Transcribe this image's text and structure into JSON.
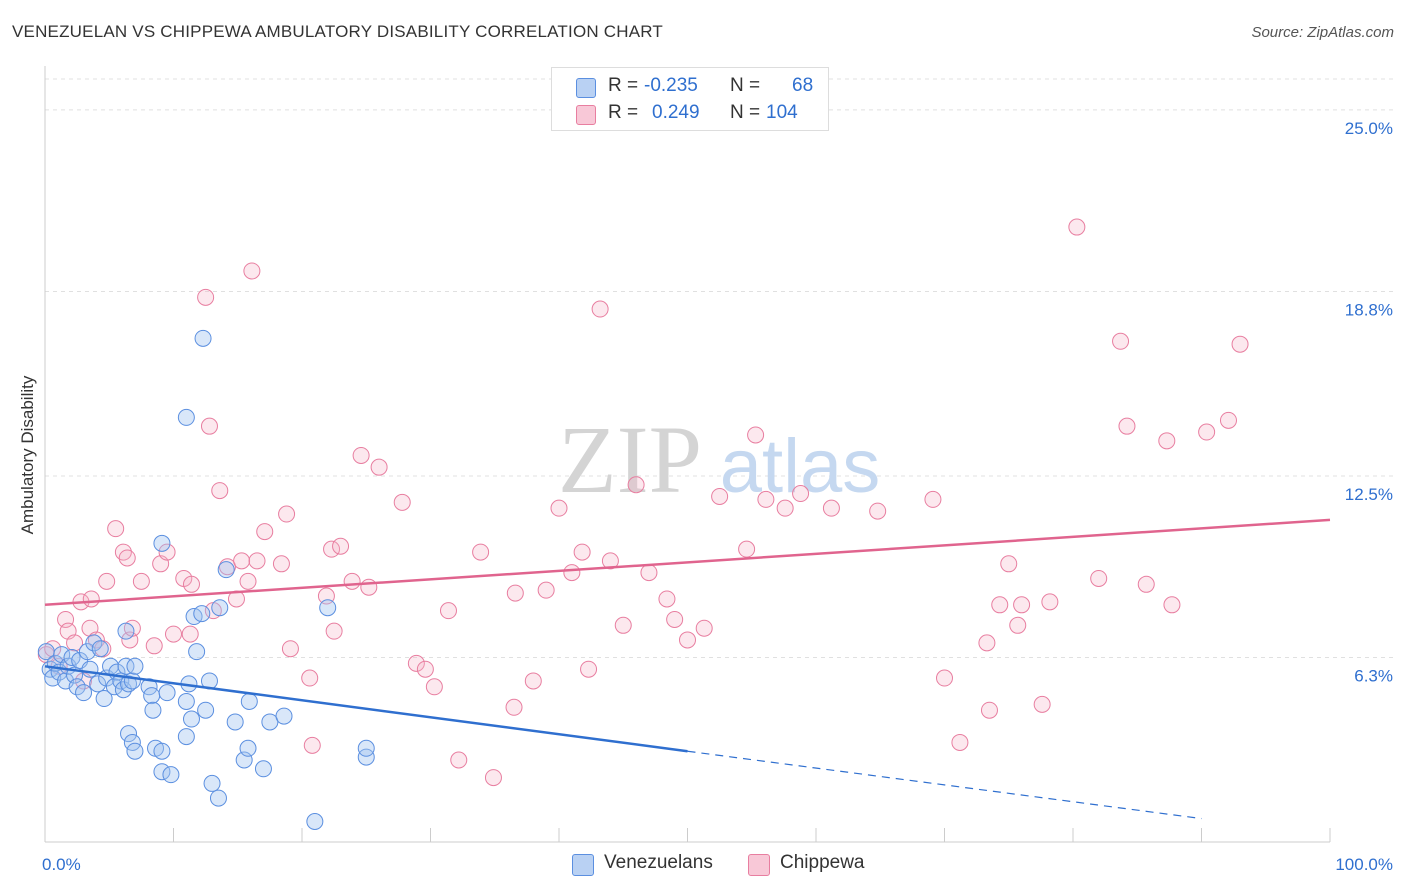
{
  "header": {
    "title": "VENEZUELAN VS CHIPPEWA AMBULATORY DISABILITY CORRELATION CHART",
    "source": "Source: ZipAtlas.com"
  },
  "watermark": {
    "zip": "ZIP",
    "atlas": "atlas"
  },
  "legend": {
    "rows": [
      {
        "r_label": "R =",
        "r_value": "-0.235",
        "n_label": "N =",
        "n_value": "68",
        "color": "#5b8fe0"
      },
      {
        "r_label": "R =",
        "r_value": "0.249",
        "n_label": "N =",
        "n_value": "104",
        "color": "#e87ea0"
      }
    ]
  },
  "bottom_legend": {
    "items": [
      {
        "label": "Venezuelans",
        "color": "#5b8fe0"
      },
      {
        "label": "Chippewa",
        "color": "#e87ea0"
      }
    ]
  },
  "chart_data": {
    "type": "scatter",
    "title": "VENEZUELAN VS CHIPPEWA AMBULATORY DISABILITY CORRELATION CHART",
    "xlabel": "",
    "ylabel": "Ambulatory Disability",
    "xlim": [
      0,
      100
    ],
    "ylim": [
      0,
      26.5
    ],
    "x_tick_labels": [
      "0.0%",
      "100.0%"
    ],
    "y_ticks": [
      6.3,
      12.5,
      18.8,
      25.0
    ],
    "y_tick_labels": [
      "6.3%",
      "12.5%",
      "18.8%",
      "25.0%"
    ],
    "grid": true,
    "colors": {
      "venezuelans": "#5b8fe0",
      "chippewa": "#e87ea0",
      "venezuelans_line": "#2f6fcf",
      "chippewa_line": "#e0648e",
      "tick_label": "#2f6fcf"
    },
    "series": [
      {
        "name": "Venezuelans",
        "r": -0.235,
        "n": 68,
        "trend": {
          "x0": 0,
          "y0": 6.0,
          "x1": 50,
          "y1": 3.1,
          "dashed_to_x": 90,
          "dashed_to_y": 0.8
        },
        "points": [
          [
            0.1,
            6.5
          ],
          [
            0.4,
            5.9
          ],
          [
            0.6,
            5.6
          ],
          [
            0.8,
            6.1
          ],
          [
            1.1,
            5.8
          ],
          [
            1.3,
            6.4
          ],
          [
            1.6,
            5.5
          ],
          [
            1.8,
            6.0
          ],
          [
            2.1,
            6.3
          ],
          [
            2.3,
            5.7
          ],
          [
            2.5,
            5.3
          ],
          [
            2.7,
            6.2
          ],
          [
            3.0,
            5.1
          ],
          [
            3.3,
            6.5
          ],
          [
            3.5,
            5.9
          ],
          [
            3.8,
            6.8
          ],
          [
            4.1,
            5.4
          ],
          [
            4.3,
            6.6
          ],
          [
            4.6,
            4.9
          ],
          [
            4.8,
            5.6
          ],
          [
            5.1,
            6.0
          ],
          [
            5.4,
            5.3
          ],
          [
            5.6,
            5.8
          ],
          [
            5.9,
            5.5
          ],
          [
            6.1,
            5.2
          ],
          [
            6.3,
            6.0
          ],
          [
            6.5,
            5.4
          ],
          [
            6.3,
            7.2
          ],
          [
            6.8,
            5.5
          ],
          [
            7.0,
            6.0
          ],
          [
            6.5,
            3.7
          ],
          [
            6.8,
            3.4
          ],
          [
            7.0,
            3.1
          ],
          [
            8.1,
            5.3
          ],
          [
            8.3,
            5.0
          ],
          [
            8.6,
            3.2
          ],
          [
            9.1,
            3.1
          ],
          [
            8.4,
            4.5
          ],
          [
            9.5,
            5.1
          ],
          [
            9.1,
            10.2
          ],
          [
            9.1,
            2.4
          ],
          [
            9.8,
            2.3
          ],
          [
            11.0,
            4.8
          ],
          [
            11.2,
            5.4
          ],
          [
            11.0,
            3.6
          ],
          [
            11.0,
            14.5
          ],
          [
            11.4,
            4.2
          ],
          [
            11.6,
            7.7
          ],
          [
            11.8,
            6.5
          ],
          [
            12.2,
            7.8
          ],
          [
            12.5,
            4.5
          ],
          [
            12.8,
            5.5
          ],
          [
            12.3,
            17.2
          ],
          [
            13.0,
            2.0
          ],
          [
            13.5,
            1.5
          ],
          [
            13.6,
            8.0
          ],
          [
            14.1,
            9.3
          ],
          [
            14.8,
            4.1
          ],
          [
            15.5,
            2.8
          ],
          [
            15.8,
            3.2
          ],
          [
            15.9,
            4.8
          ],
          [
            17.0,
            2.5
          ],
          [
            17.5,
            4.1
          ],
          [
            18.6,
            4.3
          ],
          [
            21.0,
            0.7
          ],
          [
            22.0,
            8.0
          ],
          [
            25.0,
            2.9
          ],
          [
            25.0,
            3.2
          ]
        ]
      },
      {
        "name": "Chippewa",
        "r": 0.249,
        "n": 104,
        "trend": {
          "x0": 0,
          "y0": 8.1,
          "x1": 100,
          "y1": 11.0
        },
        "points": [
          [
            0.1,
            6.4
          ],
          [
            0.6,
            6.6
          ],
          [
            1.1,
            6.0
          ],
          [
            1.6,
            7.6
          ],
          [
            1.8,
            7.2
          ],
          [
            2.3,
            6.8
          ],
          [
            2.8,
            8.2
          ],
          [
            3.0,
            5.5
          ],
          [
            3.5,
            7.3
          ],
          [
            3.6,
            8.3
          ],
          [
            4.0,
            6.9
          ],
          [
            4.5,
            6.6
          ],
          [
            4.8,
            8.9
          ],
          [
            5.5,
            10.7
          ],
          [
            6.1,
            9.9
          ],
          [
            6.4,
            9.7
          ],
          [
            6.6,
            6.9
          ],
          [
            6.8,
            7.3
          ],
          [
            7.5,
            8.9
          ],
          [
            8.5,
            6.7
          ],
          [
            9.0,
            9.5
          ],
          [
            9.5,
            9.9
          ],
          [
            10.0,
            7.1
          ],
          [
            10.8,
            9.0
          ],
          [
            11.3,
            7.1
          ],
          [
            11.4,
            8.8
          ],
          [
            12.8,
            14.2
          ],
          [
            12.5,
            18.6
          ],
          [
            13.1,
            7.9
          ],
          [
            13.6,
            12.0
          ],
          [
            14.2,
            9.4
          ],
          [
            14.9,
            8.3
          ],
          [
            15.3,
            9.6
          ],
          [
            15.8,
            8.9
          ],
          [
            16.1,
            19.5
          ],
          [
            16.5,
            9.6
          ],
          [
            17.1,
            10.6
          ],
          [
            18.4,
            9.5
          ],
          [
            18.8,
            11.2
          ],
          [
            19.1,
            6.6
          ],
          [
            20.6,
            5.6
          ],
          [
            20.8,
            3.3
          ],
          [
            21.9,
            8.4
          ],
          [
            22.3,
            10.0
          ],
          [
            22.5,
            7.2
          ],
          [
            23.0,
            10.1
          ],
          [
            23.9,
            8.9
          ],
          [
            24.6,
            13.2
          ],
          [
            25.2,
            8.7
          ],
          [
            26.0,
            12.8
          ],
          [
            27.8,
            11.6
          ],
          [
            28.9,
            6.1
          ],
          [
            29.6,
            5.9
          ],
          [
            30.3,
            5.3
          ],
          [
            31.4,
            7.9
          ],
          [
            32.2,
            2.8
          ],
          [
            33.9,
            9.9
          ],
          [
            34.9,
            2.2
          ],
          [
            36.5,
            4.6
          ],
          [
            36.6,
            8.5
          ],
          [
            38.0,
            5.5
          ],
          [
            39.0,
            8.6
          ],
          [
            40.0,
            11.4
          ],
          [
            41.0,
            9.2
          ],
          [
            41.8,
            9.9
          ],
          [
            42.3,
            5.9
          ],
          [
            43.2,
            18.2
          ],
          [
            44.0,
            9.6
          ],
          [
            45.0,
            7.4
          ],
          [
            46.0,
            12.2
          ],
          [
            47.0,
            9.2
          ],
          [
            48.4,
            8.3
          ],
          [
            49.0,
            7.6
          ],
          [
            50.0,
            6.9
          ],
          [
            51.3,
            7.3
          ],
          [
            52.5,
            11.8
          ],
          [
            54.6,
            10.0
          ],
          [
            55.3,
            13.9
          ],
          [
            56.1,
            11.7
          ],
          [
            57.6,
            11.4
          ],
          [
            58.8,
            11.9
          ],
          [
            61.2,
            11.4
          ],
          [
            64.8,
            11.3
          ],
          [
            69.1,
            11.7
          ],
          [
            70.0,
            5.6
          ],
          [
            71.2,
            3.4
          ],
          [
            73.3,
            6.8
          ],
          [
            73.5,
            4.5
          ],
          [
            74.3,
            8.1
          ],
          [
            75.0,
            9.5
          ],
          [
            75.7,
            7.4
          ],
          [
            76.0,
            8.1
          ],
          [
            77.6,
            4.7
          ],
          [
            78.2,
            8.2
          ],
          [
            80.3,
            21.0
          ],
          [
            82.0,
            9.0
          ],
          [
            83.7,
            17.1
          ],
          [
            84.2,
            14.2
          ],
          [
            85.7,
            8.8
          ],
          [
            87.3,
            13.7
          ],
          [
            87.7,
            8.1
          ],
          [
            90.4,
            14.0
          ],
          [
            92.1,
            14.4
          ],
          [
            93.0,
            17.0
          ]
        ]
      }
    ]
  }
}
